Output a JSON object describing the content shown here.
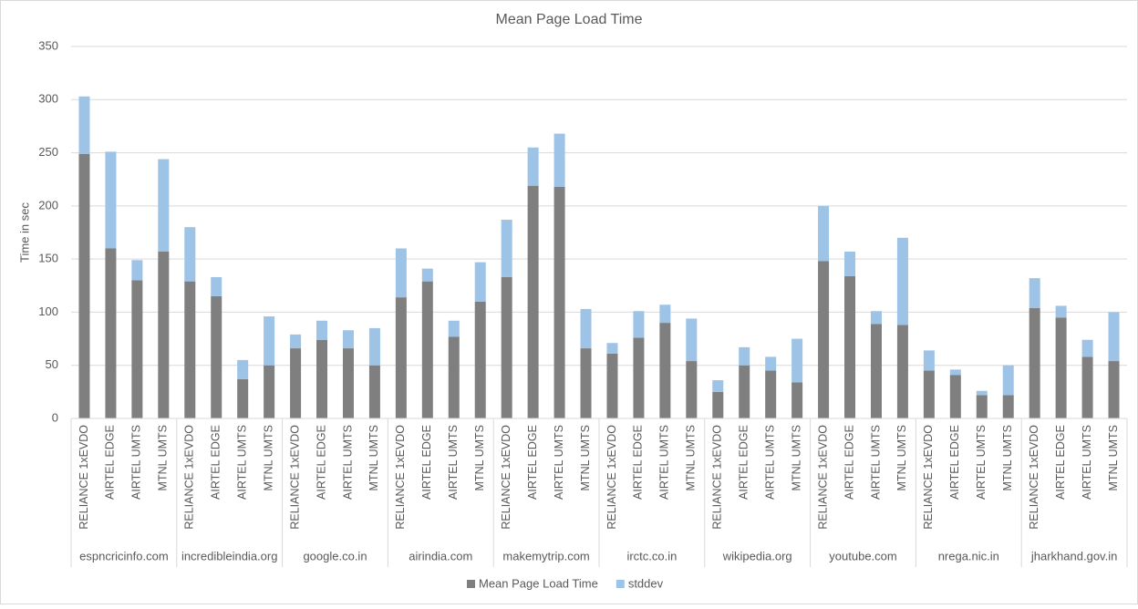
{
  "chart_data": {
    "type": "stacked_bar",
    "title": "Mean Page Load Time",
    "y_label": "Time in sec",
    "groups": [
      "espncricinfo.com",
      "incredibleindia.org",
      "google.co.in",
      "airindia.com",
      "makemytrip.com",
      "irctc.co.in",
      "wikipedia.org",
      "youtube.com",
      "nrega.nic.in",
      "jharkhand.gov.in"
    ],
    "categories": [
      "RELIANCE 1xEVDO",
      "AIRTEL EDGE",
      "AIRTEL UMTS",
      "MTNL UMTS",
      "RELIANCE 1xEVDO",
      "AIRTEL EDGE",
      "AIRTEL UMTS",
      "MTNL UMTS",
      "RELIANCE 1xEVDO",
      "AIRTEL EDGE",
      "AIRTEL UMTS",
      "MTNL UMTS",
      "RELIANCE 1xEVDO",
      "AIRTEL EDGE",
      "AIRTEL UMTS",
      "MTNL UMTS",
      "RELIANCE 1xEVDO",
      "AIRTEL EDGE",
      "AIRTEL UMTS",
      "MTNL UMTS",
      "RELIANCE 1xEVDO",
      "AIRTEL EDGE",
      "AIRTEL UMTS",
      "MTNL UMTS",
      "RELIANCE 1xEVDO",
      "AIRTEL EDGE",
      "AIRTEL UMTS",
      "MTNL UMTS",
      "RELIANCE 1xEVDO",
      "AIRTEL EDGE",
      "AIRTEL UMTS",
      "MTNL UMTS",
      "RELIANCE 1xEVDO",
      "AIRTEL EDGE",
      "AIRTEL UMTS",
      "MTNL UMTS",
      "RELIANCE 1xEVDO",
      "AIRTEL EDGE",
      "AIRTEL UMTS",
      "MTNL UMTS"
    ],
    "series": [
      {
        "name": "Mean Page Load Time",
        "color": "#7f7f7f",
        "values": [
          249,
          160,
          130,
          157,
          129,
          115,
          37,
          50,
          66,
          74,
          66,
          50,
          114,
          129,
          77,
          110,
          133,
          219,
          218,
          66,
          61,
          76,
          90,
          54,
          25,
          50,
          45,
          34,
          148,
          134,
          89,
          88,
          45,
          41,
          22,
          22,
          104,
          95,
          58,
          54
        ]
      },
      {
        "name": "stddev",
        "color": "#9dc3e6",
        "values": [
          54,
          91,
          19,
          87,
          51,
          18,
          18,
          46,
          13,
          18,
          17,
          35,
          46,
          12,
          15,
          37,
          54,
          36,
          50,
          37,
          10,
          25,
          17,
          40,
          11,
          17,
          13,
          41,
          52,
          23,
          12,
          82,
          19,
          5,
          4,
          28,
          28,
          11,
          16,
          46
        ]
      }
    ],
    "ylim": [
      0,
      350
    ],
    "yticks": [
      0,
      50,
      100,
      150,
      200,
      250,
      300,
      350
    ],
    "grid": true,
    "legend": "bottom"
  }
}
